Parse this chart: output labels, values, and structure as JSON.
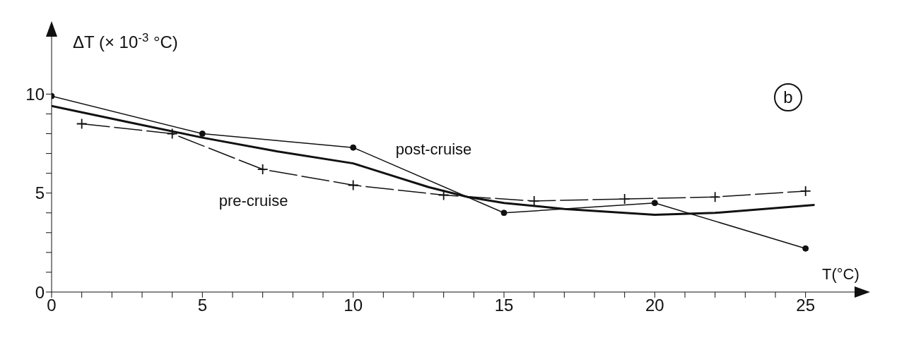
{
  "chart_data": {
    "type": "line",
    "ylabel": "ΔT (× 10$^{-3}$ °C)",
    "xlabel": "T(°C)",
    "annotations": [
      "b"
    ],
    "xlim": [
      0,
      27
    ],
    "ylim": [
      0,
      13.4
    ],
    "xticks": [
      0,
      {
        "value": 1,
        "label": null
      },
      {
        "value": 2,
        "label": null
      },
      {
        "value": 3,
        "label": null
      },
      {
        "value": 4,
        "label": null
      },
      5,
      {
        "value": 6,
        "label": null
      },
      {
        "value": 7,
        "label": null
      },
      {
        "value": 8,
        "label": null
      },
      {
        "value": 9,
        "label": null
      },
      10,
      {
        "value": 11,
        "label": null
      },
      {
        "value": 12,
        "label": null
      },
      {
        "value": 13,
        "label": null
      },
      {
        "value": 14,
        "label": null
      },
      15,
      {
        "value": 16,
        "label": null
      },
      {
        "value": 17,
        "label": null
      },
      {
        "value": 18,
        "label": null
      },
      {
        "value": 19,
        "label": null
      },
      20,
      {
        "value": 21,
        "label": null
      },
      {
        "value": 22,
        "label": null
      },
      {
        "value": 23,
        "label": null
      },
      {
        "value": 24,
        "label": null
      },
      25
    ],
    "yticks": [
      0,
      {
        "value": 1,
        "label": null
      },
      {
        "value": 2,
        "label": null
      },
      {
        "value": 3,
        "label": null
      },
      {
        "value": 4,
        "label": null
      },
      5,
      {
        "value": 6,
        "label": null
      },
      {
        "value": 7,
        "label": null
      },
      {
        "value": 8,
        "label": null
      },
      {
        "value": 9,
        "label": null
      },
      10
    ],
    "series": [
      {
        "name": "post-cruise",
        "color": "#111111",
        "marker": "circle",
        "line_style": "solid",
        "x": [
          0,
          5,
          10,
          15,
          20,
          25
        ],
        "values": [
          9.9,
          8.0,
          7.3,
          4.0,
          4.5,
          2.2
        ]
      },
      {
        "name": "pre-cruise",
        "color": "#111111",
        "marker": "cross",
        "line_style": "dashed",
        "x": [
          1,
          4,
          7,
          10,
          13,
          16,
          19,
          22,
          25
        ],
        "values": [
          8.5,
          8.0,
          6.2,
          5.4,
          4.9,
          4.6,
          4.7,
          4.8,
          5.1
        ]
      },
      {
        "color": "#111111",
        "marker": "none",
        "line_style": "solid",
        "x": [
          0,
          2.5,
          5,
          7.5,
          10,
          12.5,
          13.8,
          15,
          17,
          20,
          22,
          25.3
        ],
        "values": [
          9.4,
          8.6,
          7.8,
          7.1,
          6.5,
          5.3,
          4.8,
          4.5,
          4.2,
          3.9,
          4.0,
          4.4
        ]
      }
    ]
  }
}
